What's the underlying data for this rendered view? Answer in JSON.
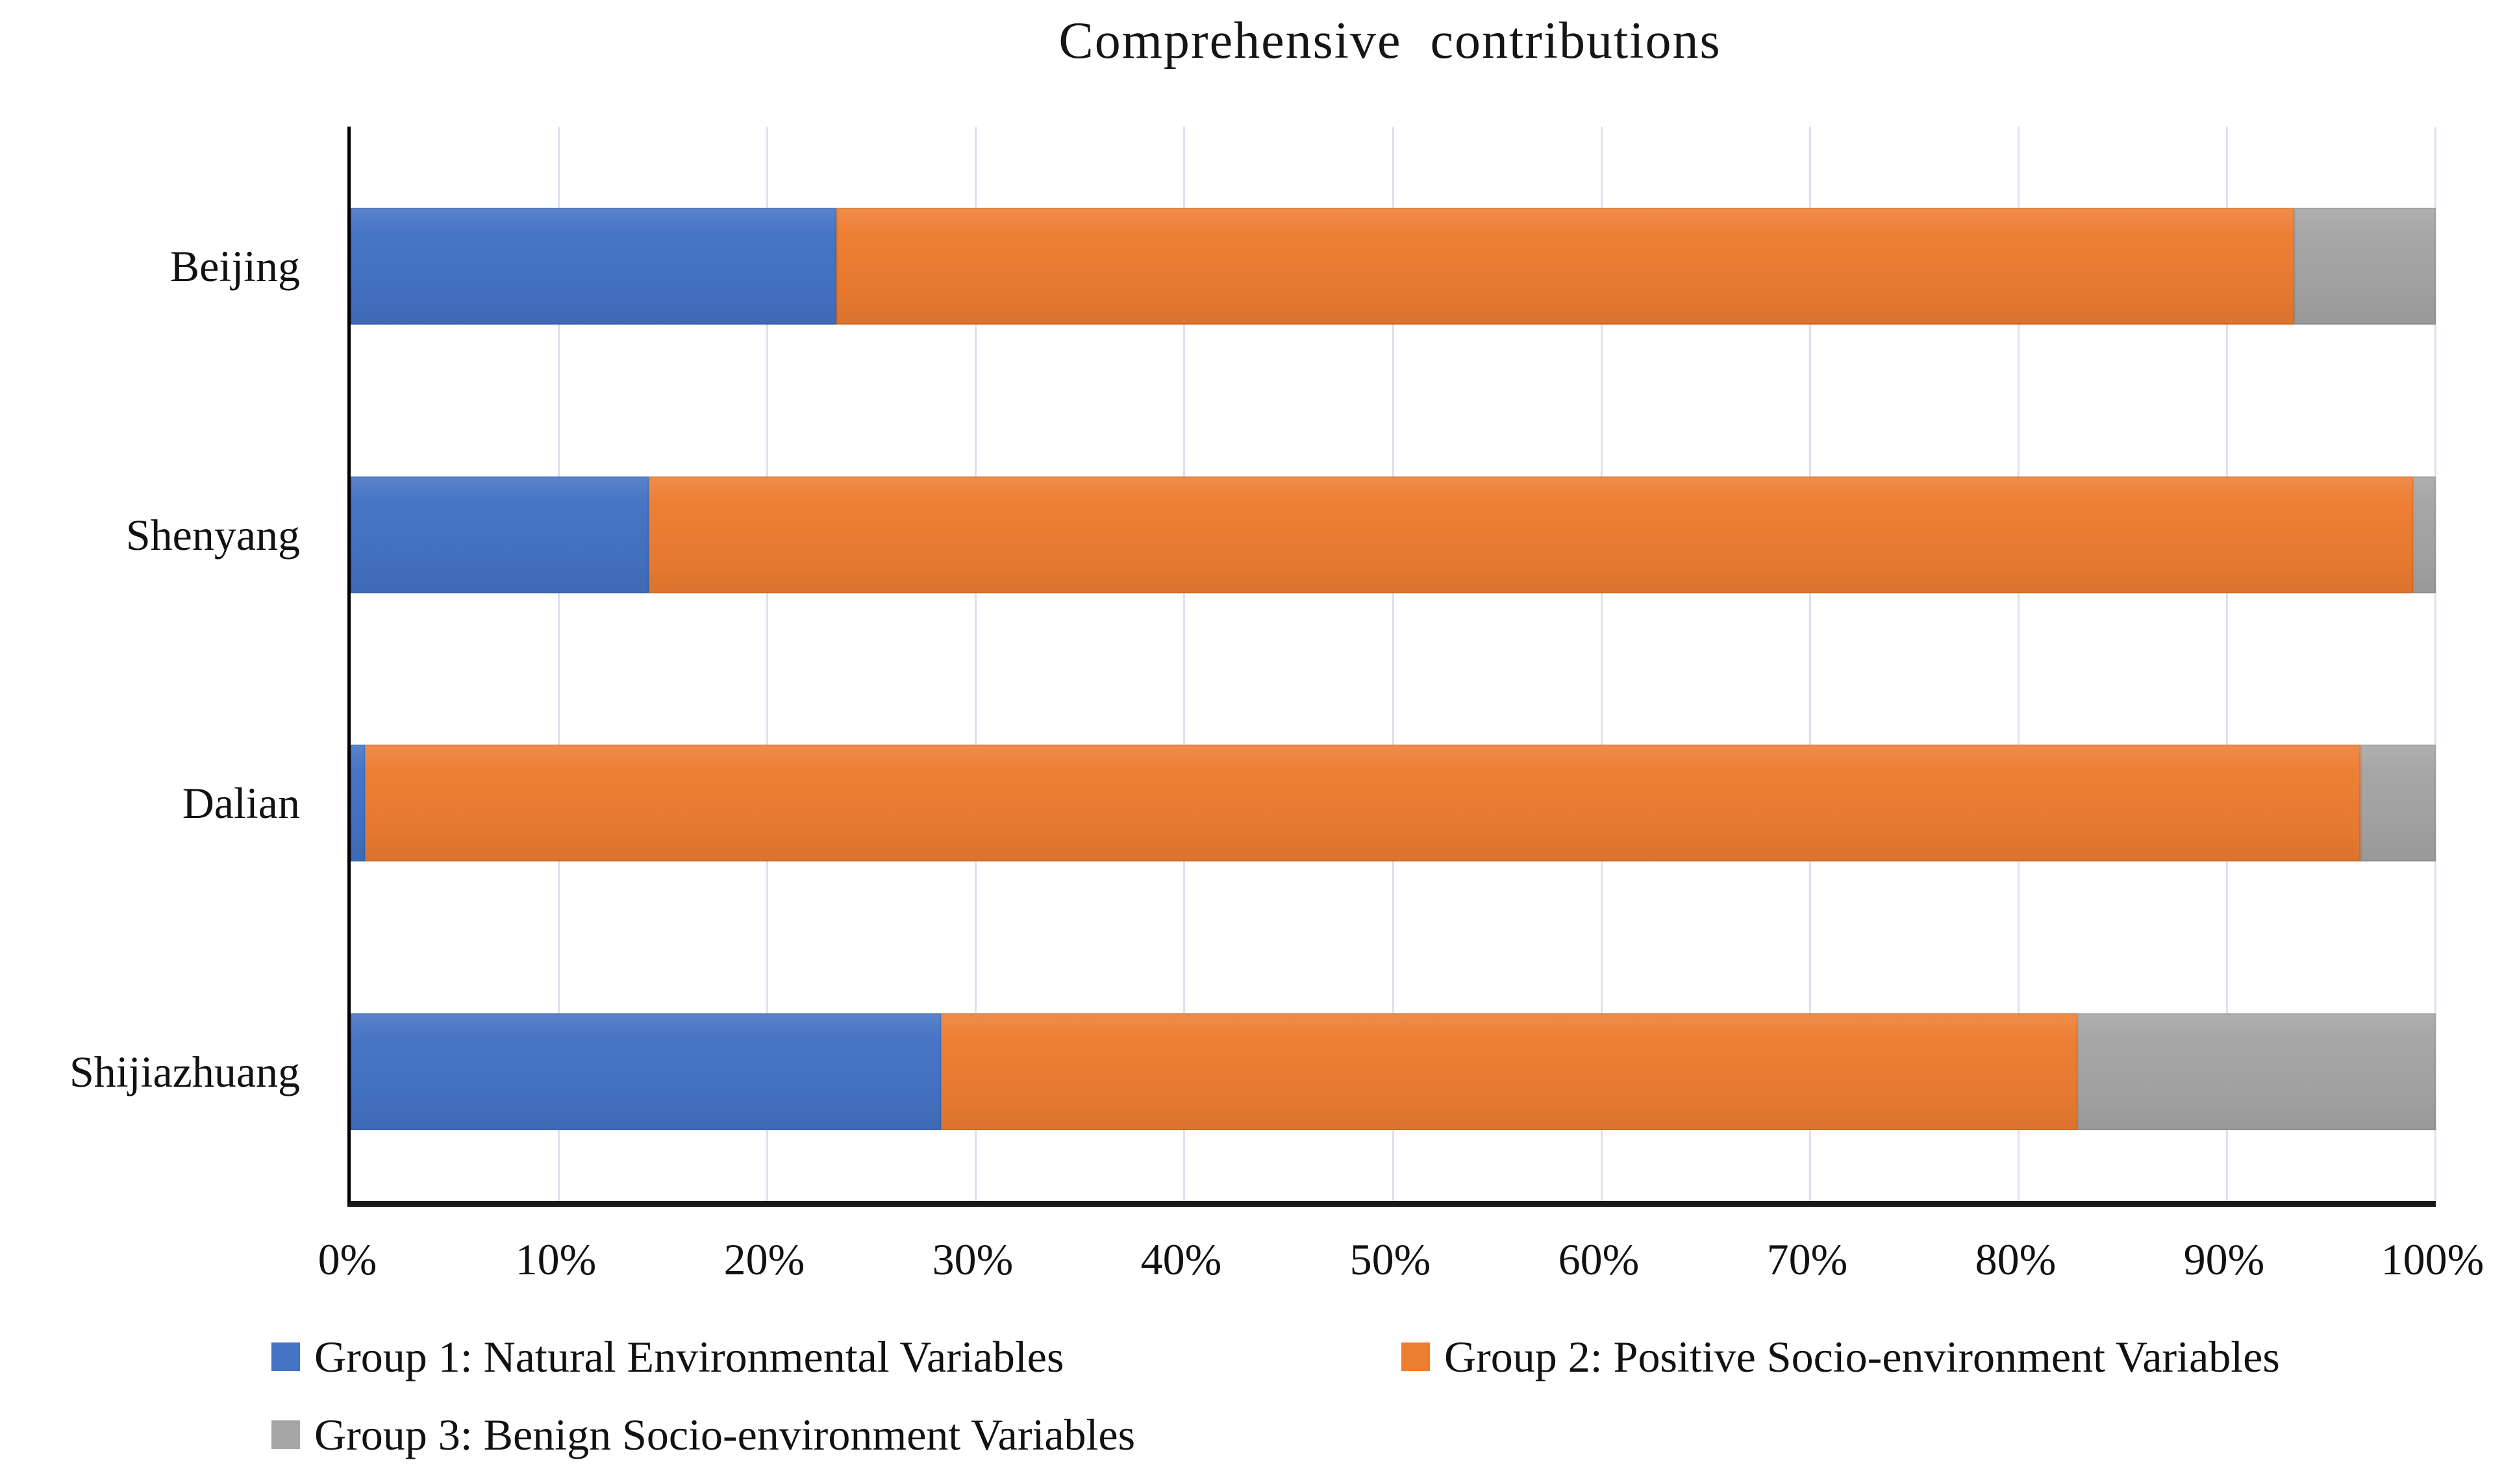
{
  "title": "Comprehensive contributions",
  "colors": {
    "series1": "#4472C4",
    "series2": "#ED7D31",
    "series3": "#A5A5A5",
    "gridline": "#dbe2ee",
    "axis": "#000000",
    "background": "#ffffff"
  },
  "chart_data": {
    "type": "bar",
    "orientation": "horizontal",
    "stacked": true,
    "title": "Comprehensive contributions",
    "categories": [
      "Beijing",
      "Shenyang",
      "Dalian",
      "Shijiazhuang"
    ],
    "series": [
      {
        "name": "Group 1: Natural Environmental Variables",
        "color": "#4472C4",
        "values": [
          23.3,
          14.3,
          0.7,
          28.3
        ]
      },
      {
        "name": "Group 2: Positive Socio-environment Variables",
        "color": "#ED7D31",
        "values": [
          69.9,
          84.6,
          95.7,
          54.5
        ]
      },
      {
        "name": "Group 3: Benign Socio-environment Variables",
        "color": "#A5A5A5",
        "values": [
          6.8,
          1.1,
          3.6,
          17.2
        ]
      }
    ],
    "x_ticks": [
      "0%",
      "10%",
      "20%",
      "30%",
      "40%",
      "50%",
      "60%",
      "70%",
      "80%",
      "90%",
      "100%"
    ],
    "xlabel": "",
    "ylabel": "",
    "xlim": [
      0,
      100
    ],
    "grid": true,
    "legend_position": "bottom"
  }
}
